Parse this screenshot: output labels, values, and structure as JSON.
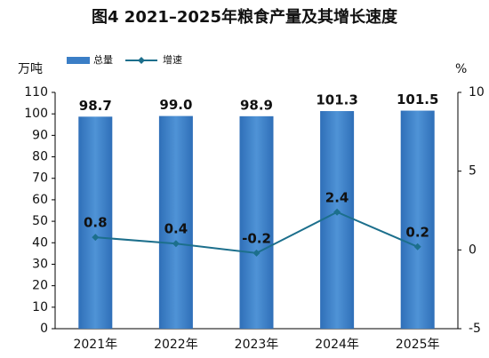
{
  "chart_data": {
    "type": "bar",
    "title": "图4  2021–2025年粮食产量及其增长速度",
    "y_label": "万吨",
    "y2_label": "%",
    "categories": [
      "2021年",
      "2022年",
      "2023年",
      "2024年",
      "2025年"
    ],
    "series": [
      {
        "name": "总量",
        "type": "bar",
        "color": "#3b7ec6",
        "values": [
          98.7,
          99.0,
          98.9,
          101.3,
          101.5
        ],
        "value_labels": [
          "98.7",
          "99.0",
          "98.9",
          "101.3",
          "101.5"
        ]
      },
      {
        "name": "增速",
        "type": "line",
        "axis": "y2",
        "color": "#1c6f8c",
        "values": [
          0.8,
          0.4,
          -0.2,
          2.4,
          0.2
        ]
      }
    ],
    "ylim": [
      0,
      110
    ],
    "yticks": [
      0,
      10,
      20,
      30,
      40,
      50,
      60,
      70,
      80,
      90,
      100,
      110
    ],
    "y2lim": [
      -5,
      10
    ],
    "y2ticks": [
      -5,
      0,
      5,
      10
    ]
  }
}
